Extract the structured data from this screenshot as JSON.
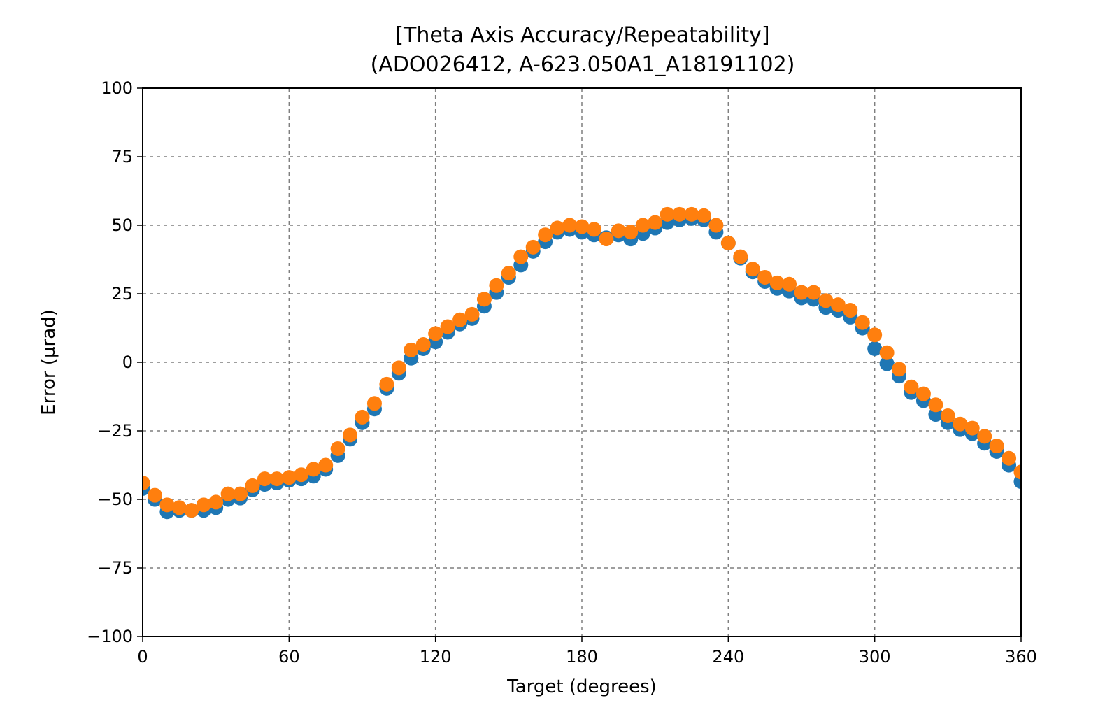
{
  "chart_data": {
    "type": "scatter",
    "title": "[Theta Axis Accuracy/Repeatability]",
    "subtitle": "(ADO026412, A-623.050A1_A18191102)",
    "xlabel": "Target (degrees)",
    "ylabel": "Error (µrad)",
    "xlim": [
      0,
      360
    ],
    "ylim": [
      -100,
      100
    ],
    "x_ticks": [
      0,
      60,
      120,
      180,
      240,
      300,
      360
    ],
    "y_ticks": [
      100,
      75,
      50,
      25,
      0,
      -25,
      -50,
      -75,
      -100
    ],
    "x_tick_labels": [
      "0",
      "60",
      "120",
      "180",
      "240",
      "300",
      "360"
    ],
    "y_tick_labels": [
      "100",
      "75",
      "50",
      "25",
      "0",
      "−25",
      "−50",
      "−75",
      "−100"
    ],
    "grid": true,
    "legend": "none",
    "x": [
      0,
      5,
      10,
      15,
      20,
      25,
      30,
      35,
      40,
      45,
      50,
      55,
      60,
      65,
      70,
      75,
      80,
      85,
      90,
      95,
      100,
      105,
      110,
      115,
      120,
      125,
      130,
      135,
      140,
      145,
      150,
      155,
      160,
      165,
      170,
      175,
      180,
      185,
      190,
      195,
      200,
      205,
      210,
      215,
      220,
      225,
      230,
      235,
      240,
      245,
      250,
      255,
      260,
      265,
      270,
      275,
      280,
      285,
      290,
      295,
      300,
      305,
      310,
      315,
      320,
      325,
      330,
      335,
      340,
      345,
      350,
      355,
      360
    ],
    "series": [
      {
        "color": "#1f77b4",
        "values": [
          -45,
          -49,
          -53.5,
          -53,
          -53,
          -53,
          -52,
          -49,
          -48.5,
          -45.5,
          -43.5,
          -43,
          -42,
          -41.5,
          -40.5,
          -38,
          -33,
          -27,
          -21,
          -16,
          -8.5,
          -3,
          2.5,
          6,
          8.5,
          12,
          15,
          17,
          21.5,
          26.5,
          32,
          36.5,
          41.5,
          45,
          48.5,
          49.5,
          48.5,
          47.5,
          46.5,
          47.5,
          46,
          48,
          50,
          52,
          53,
          53.5,
          53,
          48.5,
          44.5,
          39,
          34,
          30.5,
          28,
          27,
          24.5,
          24,
          21,
          20,
          17.5,
          13.5,
          6,
          0.5,
          -4,
          -10,
          -13,
          -18,
          -21,
          -23.5,
          -25,
          -28.5,
          -31.5,
          -36.5,
          -42.5
        ]
      },
      {
        "color": "#ff7f0e",
        "values": [
          -44,
          -48.5,
          -52,
          -53,
          -54,
          -52,
          -51,
          -48,
          -48,
          -45,
          -42.5,
          -42.5,
          -42,
          -41,
          -39,
          -37.5,
          -31.5,
          -26.5,
          -20,
          -15,
          -8,
          -2,
          4.5,
          6.5,
          10.5,
          13,
          15.5,
          17.5,
          23,
          28,
          32.5,
          38.5,
          42,
          46.5,
          49,
          50,
          49.5,
          48.5,
          45,
          48,
          47.5,
          50,
          51,
          54,
          54,
          54,
          53.5,
          50,
          43.5,
          38.5,
          34,
          31,
          29,
          28.5,
          25.5,
          25.5,
          22.5,
          21,
          19,
          14.5,
          10,
          3.5,
          -2.5,
          -9,
          -11.5,
          -15.5,
          -19.5,
          -22.5,
          -24,
          -27,
          -30.5,
          -35,
          -40
        ]
      }
    ]
  }
}
